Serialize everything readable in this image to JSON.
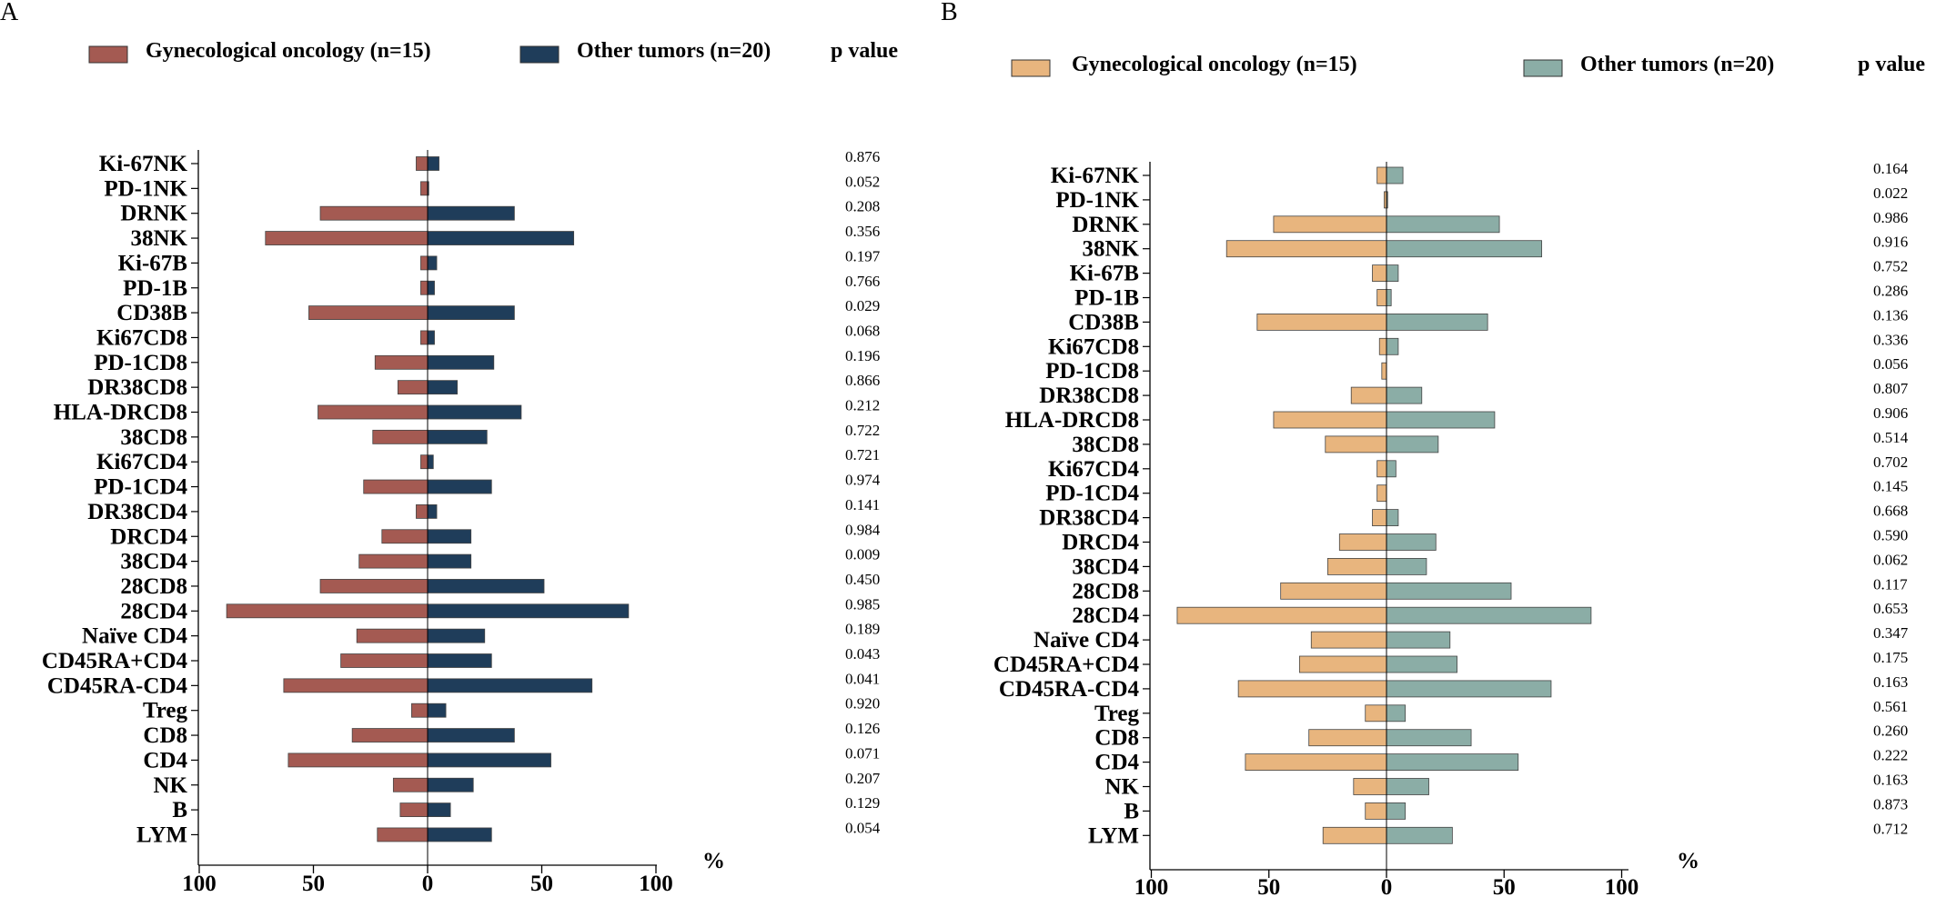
{
  "chart_data": [
    {
      "type": "bar",
      "orientation": "horizontal-butterfly",
      "panel_label": "A",
      "categories": [
        "Ki-67NK",
        "PD-1NK",
        "DRNK",
        "38NK",
        "Ki-67B",
        "PD-1B",
        "CD38B",
        "Ki67CD8",
        "PD-1CD8",
        "DR38CD8",
        "HLA-DRCD8",
        "38CD8",
        "Ki67CD4",
        "PD-1CD4",
        "DR38CD4",
        "DRCD4",
        "38CD4",
        "28CD8",
        "28CD4",
        "Naïve CD4",
        "CD45RA+CD4",
        "CD45RA-CD4",
        "Treg",
        "CD8",
        "CD4",
        "NK",
        "B",
        "LYM"
      ],
      "series": [
        {
          "name": "Gynecological oncology (n=15)",
          "direction": "left",
          "color": "#a45a52",
          "values": [
            5,
            3,
            47,
            71,
            3,
            3,
            52,
            3,
            23,
            13,
            48,
            24,
            3,
            28,
            5,
            20,
            30,
            47,
            88,
            31,
            38,
            63,
            7,
            33,
            61,
            15,
            12,
            22
          ]
        },
        {
          "name": "Other tumors (n=20)",
          "direction": "right",
          "color": "#1f3d5a",
          "values": [
            5,
            0.5,
            38,
            64,
            4,
            3,
            38,
            3,
            29,
            13,
            41,
            26,
            2.5,
            28,
            4,
            19,
            19,
            51,
            88,
            25,
            28,
            72,
            8,
            38,
            54,
            20,
            10,
            28
          ]
        }
      ],
      "pvalue_header": "p value",
      "pvalues": [
        "0.876",
        "0.052",
        "0.208",
        "0.356",
        "0.197",
        "0.766",
        "0.029",
        "0.068",
        "0.196",
        "0.866",
        "0.212",
        "0.722",
        "0.721",
        "0.974",
        "0.141",
        "0.984",
        "0.009",
        "0.450",
        "0.985",
        "0.189",
        "0.043",
        "0.041",
        "0.920",
        "0.126",
        "0.071",
        "0.207",
        "0.129",
        "0.054"
      ],
      "xaxis": {
        "ticks": [
          100,
          50,
          0,
          50,
          100
        ],
        "unit": "%",
        "range": [
          -100,
          100
        ]
      }
    },
    {
      "type": "bar",
      "orientation": "horizontal-butterfly",
      "panel_label": "B",
      "categories": [
        "Ki-67NK",
        "PD-1NK",
        "DRNK",
        "38NK",
        "Ki-67B",
        "PD-1B",
        "CD38B",
        "Ki67CD8",
        "PD-1CD8",
        "DR38CD8",
        "HLA-DRCD8",
        "38CD8",
        "Ki67CD4",
        "PD-1CD4",
        "DR38CD4",
        "DRCD4",
        "38CD4",
        "28CD8",
        "28CD4",
        "Naïve CD4",
        "CD45RA+CD4",
        "CD45RA-CD4",
        "Treg",
        "CD8",
        "CD4",
        "NK",
        "B",
        "LYM"
      ],
      "series": [
        {
          "name": "Gynecological oncology (n=15)",
          "direction": "left",
          "color": "#e8b57e",
          "values": [
            4,
            1,
            48,
            68,
            6,
            4,
            55,
            3,
            2,
            15,
            48,
            26,
            4,
            4,
            6,
            20,
            25,
            45,
            89,
            32,
            37,
            63,
            9,
            33,
            60,
            14,
            9,
            27
          ]
        },
        {
          "name": "Other tumors (n=20)",
          "direction": "right",
          "color": "#8bada6",
          "values": [
            7,
            0.5,
            48,
            66,
            5,
            2,
            43,
            5,
            0,
            15,
            46,
            22,
            4,
            0,
            5,
            21,
            17,
            53,
            87,
            27,
            30,
            70,
            8,
            36,
            56,
            18,
            8,
            28
          ]
        }
      ],
      "pvalue_header": "p value",
      "pvalues": [
        "0.164",
        "0.022",
        "0.986",
        "0.916",
        "0.752",
        "0.286",
        "0.136",
        "0.336",
        "0.056",
        "0.807",
        "0.906",
        "0.514",
        "0.702",
        "0.145",
        "0.668",
        "0.590",
        "0.062",
        "0.117",
        "0.653",
        "0.347",
        "0.175",
        "0.163",
        "0.561",
        "0.260",
        "0.222",
        "0.163",
        "0.873",
        "0.712"
      ],
      "xaxis": {
        "ticks": [
          100,
          50,
          0,
          50,
          100
        ],
        "unit": "%",
        "range": [
          -100,
          100
        ]
      }
    }
  ]
}
